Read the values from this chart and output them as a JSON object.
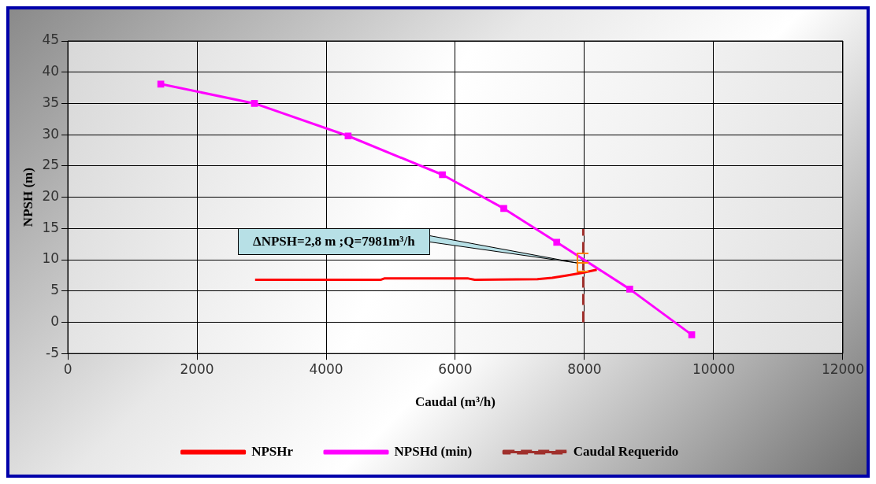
{
  "chart_data": {
    "type": "line",
    "xlabel": "Caudal (m³/h)",
    "ylabel": "NPSH (m)",
    "xlim": [
      0,
      12000
    ],
    "xticks": [
      0,
      2000,
      4000,
      6000,
      8000,
      10000,
      12000
    ],
    "ylim": [
      -5,
      45
    ],
    "yticks": [
      -5,
      0,
      5,
      10,
      15,
      20,
      25,
      30,
      35,
      40,
      45
    ],
    "grid": true,
    "legend": "bottom",
    "series": [
      {
        "name": "NPSHr",
        "color": "#ff0000",
        "marker": "none",
        "line_style": "solid",
        "x": [
          2900,
          4850,
          4900,
          6200,
          6300,
          7270,
          7500,
          7730,
          7960,
          8190
        ],
        "values": [
          6.8,
          6.8,
          7.0,
          7.0,
          6.8,
          6.9,
          7.1,
          7.5,
          7.9,
          8.4
        ]
      },
      {
        "name": "NPSHd (min)",
        "color": "#ff00ff",
        "marker": "square",
        "line_style": "solid",
        "x": [
          1440,
          2890,
          4340,
          5800,
          6750,
          7570,
          8700,
          9660
        ],
        "values": [
          38.1,
          35.0,
          29.8,
          23.6,
          18.2,
          12.8,
          5.3,
          -2.0
        ]
      },
      {
        "name": "Caudal Requerido",
        "color": "#a0302c",
        "marker": "none",
        "line_style": "dashed",
        "x": [
          7981,
          7981
        ],
        "values": [
          0,
          14.9
        ]
      }
    ],
    "annotations": [
      "ΔNPSH=2,8 m ;Q=7981m³/h"
    ]
  }
}
